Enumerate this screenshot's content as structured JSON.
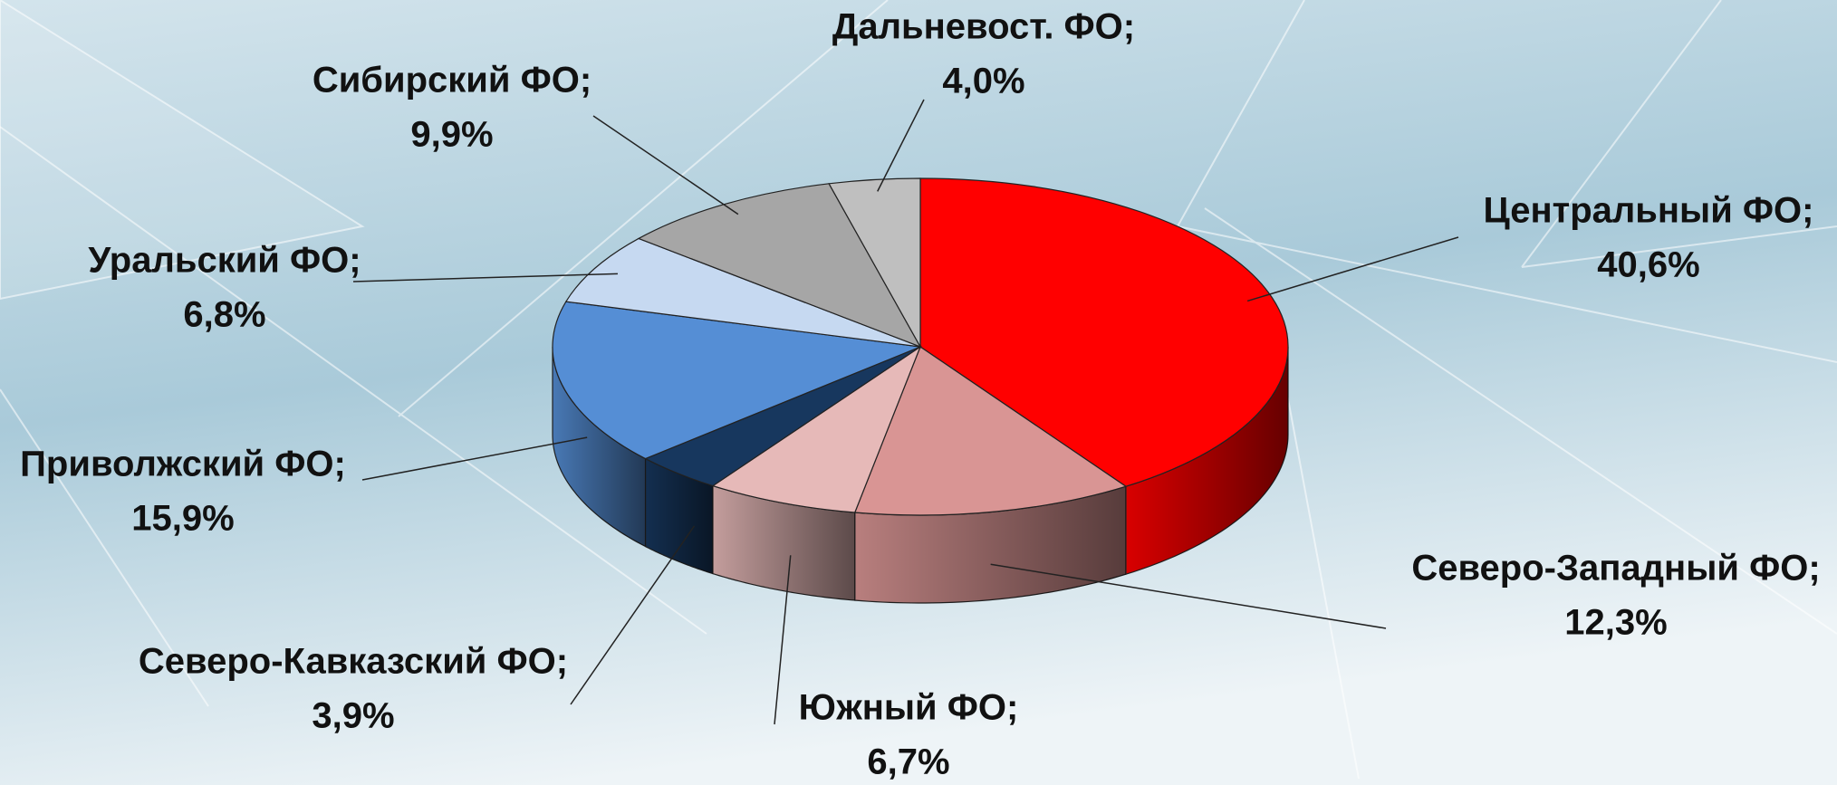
{
  "chart_data": {
    "type": "pie3d",
    "categories": [
      "Центральный ФО;",
      "Северо-Западный ФО;",
      "Южный ФО;",
      "Северо-Кавказский ФО;",
      "Приволжский ФО;",
      "Уральский ФО;",
      "Сибирский ФО;",
      "Дальневост. ФО;"
    ],
    "values": [
      40.6,
      12.3,
      6.7,
      3.9,
      15.9,
      6.8,
      9.9,
      4.0
    ],
    "value_labels": [
      "40,6%",
      "12,3%",
      "6,7%",
      "3,9%",
      "15,9%",
      "6,8%",
      "9,9%",
      "4,0%"
    ],
    "colors": [
      "#ff0000",
      "#d99594",
      "#e6b9b8",
      "#17375e",
      "#558ed5",
      "#c6d9f1",
      "#a6a6a6",
      "#bfbfbf"
    ]
  }
}
